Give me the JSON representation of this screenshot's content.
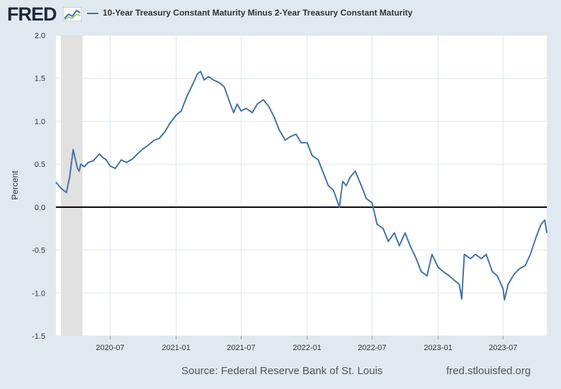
{
  "header": {
    "logo_text": "FRED",
    "series_title": "10-Year Treasury Constant Maturity Minus 2-Year Treasury Constant Maturity"
  },
  "footer": {
    "source": "Source: Federal Reserve Bank of St. Louis",
    "url": "fred.stlouisfed.org"
  },
  "chart_data": {
    "type": "line",
    "title": "10-Year Treasury Constant Maturity Minus 2-Year Treasury Constant Maturity",
    "xlabel": "",
    "ylabel": "Percent",
    "ylim": [
      -1.5,
      2.0
    ],
    "yticks": [
      -1.5,
      -1.0,
      -0.5,
      0.0,
      0.5,
      1.0,
      1.5,
      2.0
    ],
    "ytick_labels": [
      "-1.5",
      "-1.0",
      "-0.5",
      "0.0",
      "0.5",
      "1.0",
      "1.5",
      "2.0"
    ],
    "xlim": [
      "2020-02-01",
      "2023-10-31"
    ],
    "xticks": [
      "2020-07",
      "2021-01",
      "2021-07",
      "2022-01",
      "2022-07",
      "2023-01",
      "2023-07"
    ],
    "grid": true,
    "recession_shading": [
      "2020-02-15",
      "2020-04-15"
    ],
    "zero_line": true,
    "colors": {
      "line": "#4572a7",
      "recession": "#e1e1e1",
      "grid": "#dfe7ee",
      "zero_line": "#000000",
      "plot_bg": "#ffffff"
    },
    "series": [
      {
        "name": "10-Year Treasury Constant Maturity Minus 2-Year Treasury Constant Maturity",
        "x": [
          "2020-02-01",
          "2020-02-15",
          "2020-03-01",
          "2020-03-10",
          "2020-03-20",
          "2020-04-01",
          "2020-04-06",
          "2020-04-10",
          "2020-04-20",
          "2020-05-01",
          "2020-05-15",
          "2020-06-01",
          "2020-06-10",
          "2020-06-20",
          "2020-07-01",
          "2020-07-15",
          "2020-08-01",
          "2020-08-15",
          "2020-09-01",
          "2020-09-15",
          "2020-10-01",
          "2020-10-15",
          "2020-11-01",
          "2020-11-15",
          "2020-12-01",
          "2020-12-15",
          "2021-01-01",
          "2021-01-15",
          "2021-02-01",
          "2021-02-15",
          "2021-03-01",
          "2021-03-10",
          "2021-03-20",
          "2021-04-01",
          "2021-04-15",
          "2021-05-01",
          "2021-05-15",
          "2021-06-01",
          "2021-06-10",
          "2021-06-20",
          "2021-07-01",
          "2021-07-15",
          "2021-08-01",
          "2021-08-15",
          "2021-09-01",
          "2021-09-15",
          "2021-10-01",
          "2021-10-15",
          "2021-11-01",
          "2021-11-15",
          "2021-12-01",
          "2021-12-15",
          "2022-01-01",
          "2022-01-15",
          "2022-02-01",
          "2022-02-15",
          "2022-03-01",
          "2022-03-15",
          "2022-04-01",
          "2022-04-10",
          "2022-04-20",
          "2022-05-01",
          "2022-05-15",
          "2022-06-01",
          "2022-06-15",
          "2022-07-01",
          "2022-07-15",
          "2022-08-01",
          "2022-08-15",
          "2022-09-01",
          "2022-09-15",
          "2022-10-01",
          "2022-10-15",
          "2022-11-01",
          "2022-11-15",
          "2022-12-01",
          "2022-12-15",
          "2023-01-01",
          "2023-01-15",
          "2023-02-01",
          "2023-02-15",
          "2023-03-01",
          "2023-03-08",
          "2023-03-15",
          "2023-04-01",
          "2023-04-15",
          "2023-05-01",
          "2023-05-15",
          "2023-06-01",
          "2023-06-15",
          "2023-07-01",
          "2023-07-05",
          "2023-07-15",
          "2023-08-01",
          "2023-08-15",
          "2023-09-01",
          "2023-09-15",
          "2023-10-01",
          "2023-10-15",
          "2023-10-25",
          "2023-10-31"
        ],
        "values": [
          0.29,
          0.22,
          0.17,
          0.35,
          0.67,
          0.45,
          0.42,
          0.5,
          0.47,
          0.52,
          0.54,
          0.62,
          0.58,
          0.55,
          0.48,
          0.45,
          0.55,
          0.52,
          0.56,
          0.62,
          0.68,
          0.72,
          0.78,
          0.8,
          0.88,
          0.98,
          1.07,
          1.12,
          1.3,
          1.42,
          1.55,
          1.58,
          1.48,
          1.52,
          1.48,
          1.45,
          1.4,
          1.2,
          1.1,
          1.2,
          1.12,
          1.15,
          1.1,
          1.2,
          1.25,
          1.18,
          1.05,
          0.9,
          0.78,
          0.82,
          0.85,
          0.75,
          0.75,
          0.6,
          0.55,
          0.4,
          0.25,
          0.2,
          0.0,
          0.3,
          0.25,
          0.35,
          0.42,
          0.25,
          0.1,
          0.05,
          -0.2,
          -0.25,
          -0.4,
          -0.3,
          -0.45,
          -0.3,
          -0.45,
          -0.6,
          -0.75,
          -0.8,
          -0.55,
          -0.7,
          -0.75,
          -0.8,
          -0.85,
          -0.9,
          -1.07,
          -0.55,
          -0.6,
          -0.55,
          -0.6,
          -0.55,
          -0.75,
          -0.8,
          -0.95,
          -1.08,
          -0.9,
          -0.78,
          -0.72,
          -0.68,
          -0.55,
          -0.35,
          -0.2,
          -0.15,
          -0.3
        ]
      }
    ]
  }
}
